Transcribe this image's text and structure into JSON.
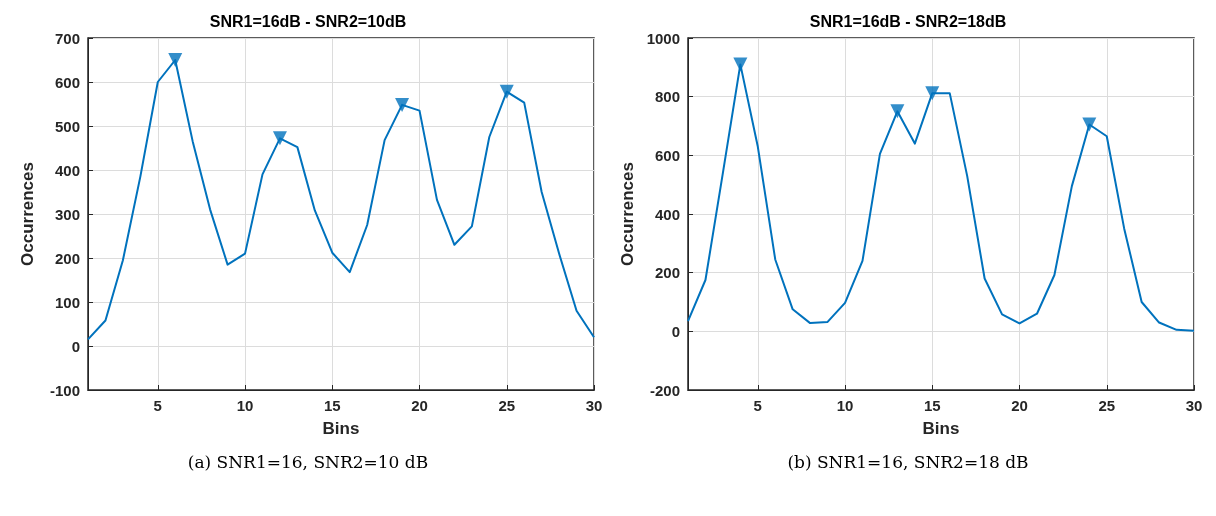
{
  "chart_data": [
    {
      "type": "line",
      "title": "SNR1=16dB - SNR2=10dB",
      "xlabel": "Bins",
      "ylabel": "Occurrences",
      "annotations": [
        "(a) SNR1=16, SNR2=10 dB"
      ],
      "x": [
        1,
        2,
        3,
        4,
        5,
        6,
        7,
        8,
        9,
        10,
        11,
        12,
        13,
        14,
        15,
        16,
        17,
        18,
        19,
        20,
        21,
        22,
        23,
        24,
        25,
        26,
        27,
        28,
        29,
        30
      ],
      "xlim": [
        1,
        30
      ],
      "xticks": [
        5,
        10,
        15,
        20,
        25,
        30
      ],
      "ylim": [
        -100,
        700
      ],
      "yticks": [
        -100,
        0,
        100,
        200,
        300,
        400,
        500,
        600,
        700
      ],
      "grid": true,
      "series": [
        {
          "color": "#0072bd",
          "marker": "none",
          "values": [
            15,
            58,
            195,
            385,
            600,
            650,
            465,
            310,
            185,
            210,
            390,
            472,
            452,
            308,
            212,
            168,
            275,
            468,
            548,
            535,
            332,
            230,
            272,
            475,
            578,
            553,
            350,
            210,
            80,
            20
          ]
        },
        {
          "type": "scatter",
          "color": "#0072bd",
          "marker": "triangle",
          "x": [
            6,
            12,
            19,
            25
          ],
          "values": [
            650,
            472,
            548,
            578
          ]
        }
      ]
    },
    {
      "type": "line",
      "title": "SNR1=16dB - SNR2=18dB",
      "xlabel": "Bins",
      "ylabel": "Occurrences",
      "annotations": [
        "(b) SNR1=16, SNR2=18 dB"
      ],
      "x": [
        1,
        2,
        3,
        4,
        5,
        6,
        7,
        8,
        9,
        10,
        11,
        12,
        13,
        14,
        15,
        16,
        17,
        18,
        19,
        20,
        21,
        22,
        23,
        24,
        25,
        26,
        27,
        28,
        29,
        30
      ],
      "xlim": [
        1,
        30
      ],
      "xticks": [
        5,
        10,
        15,
        20,
        25,
        30
      ],
      "ylim": [
        -200,
        1000
      ],
      "yticks": [
        -200,
        0,
        200,
        400,
        600,
        800,
        1000
      ],
      "grid": true,
      "series": [
        {
          "color": "#0072bd",
          "marker": "none",
          "values": [
            35,
            175,
            540,
            910,
            630,
            245,
            75,
            28,
            32,
            97,
            240,
            605,
            750,
            640,
            812,
            812,
            530,
            180,
            58,
            27,
            60,
            192,
            495,
            705,
            665,
            350,
            100,
            30,
            5,
            2
          ]
        },
        {
          "type": "scatter",
          "color": "#0072bd",
          "marker": "triangle",
          "x": [
            4,
            13,
            15,
            24
          ],
          "values": [
            910,
            750,
            812,
            705
          ]
        }
      ]
    }
  ]
}
